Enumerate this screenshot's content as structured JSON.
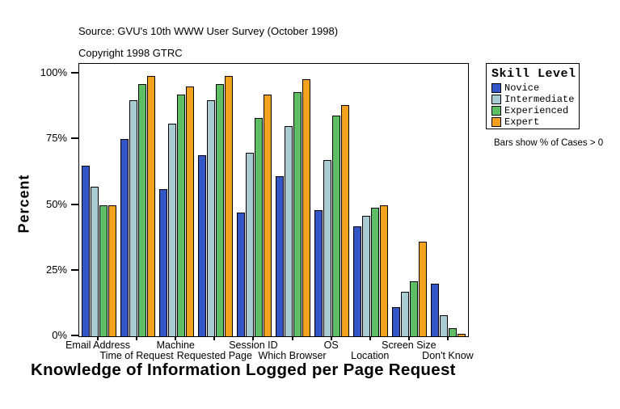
{
  "header": {
    "source": "Source: GVU's 10th WWW User Survey (October 1998)",
    "copyright": "Copyright 1998 GTRC"
  },
  "legend": {
    "title": "Skill Level",
    "note": "Bars show % of Cases > 0",
    "position": "right"
  },
  "chart_data": {
    "type": "bar",
    "title": "Knowledge of Information Logged per Page Request",
    "xlabel": "",
    "ylabel": "Percent",
    "ylim": [
      0,
      100
    ],
    "yticks": [
      "0%",
      "25%",
      "50%",
      "75%",
      "100%"
    ],
    "grid": false,
    "categories": [
      "Email Address",
      "Time of Request",
      "Machine",
      "Requested Page",
      "Session ID",
      "Which Browser",
      "OS",
      "Location",
      "Screen Size",
      "Don't Know"
    ],
    "series": [
      {
        "name": "Novice",
        "color": "#3355C6",
        "values": [
          65,
          75,
          56,
          69,
          47,
          61,
          48,
          42,
          11,
          20
        ]
      },
      {
        "name": "Intermediate",
        "color": "#A9CCD2",
        "values": [
          57,
          90,
          81,
          90,
          70,
          80,
          67,
          46,
          17,
          8
        ]
      },
      {
        "name": "Experienced",
        "color": "#5DBE66",
        "values": [
          50,
          96,
          92,
          96,
          83,
          93,
          84,
          49,
          21,
          3
        ]
      },
      {
        "name": "Expert",
        "color": "#F2A01E",
        "values": [
          50,
          99,
          95,
          99,
          92,
          98,
          88,
          50,
          36,
          1
        ]
      }
    ]
  }
}
